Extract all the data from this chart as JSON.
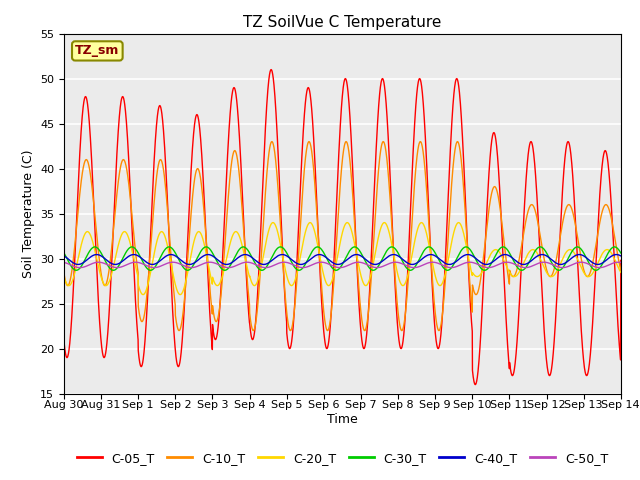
{
  "title": "TZ SoilVue C Temperature",
  "xlabel": "Time",
  "ylabel": "Soil Temperature (C)",
  "ylim": [
    15,
    55
  ],
  "yticks": [
    15,
    20,
    25,
    30,
    35,
    40,
    45,
    50,
    55
  ],
  "xlim": [
    0,
    15
  ],
  "n_points": 3000,
  "series": [
    {
      "label": "C-05_T",
      "color": "#FF0000"
    },
    {
      "label": "C-10_T",
      "color": "#FF8C00"
    },
    {
      "label": "C-20_T",
      "color": "#FFD700"
    },
    {
      "label": "C-30_T",
      "color": "#00CC00"
    },
    {
      "label": "C-40_T",
      "color": "#0000CC"
    },
    {
      "label": "C-50_T",
      "color": "#BB44BB"
    }
  ],
  "xtick_labels": [
    "Aug 30",
    "Aug 31",
    "Sep 1",
    "Sep 2",
    "Sep 3",
    "Sep 4",
    "Sep 5",
    "Sep 6",
    "Sep 7",
    "Sep 8",
    "Sep 9",
    "Sep 10",
    "Sep 11",
    "Sep 12",
    "Sep 13",
    "Sep 14"
  ],
  "xtick_positions": [
    0,
    1,
    2,
    3,
    4,
    5,
    6,
    7,
    8,
    9,
    10,
    11,
    12,
    13,
    14,
    15
  ],
  "bg_color": "#EBEBEB",
  "fig_bg_color": "#FFFFFF",
  "annotation_text": "TZ_sm",
  "grid_color": "#FFFFFF",
  "title_fontsize": 11,
  "axis_label_fontsize": 9,
  "tick_fontsize": 8,
  "legend_fontsize": 9
}
